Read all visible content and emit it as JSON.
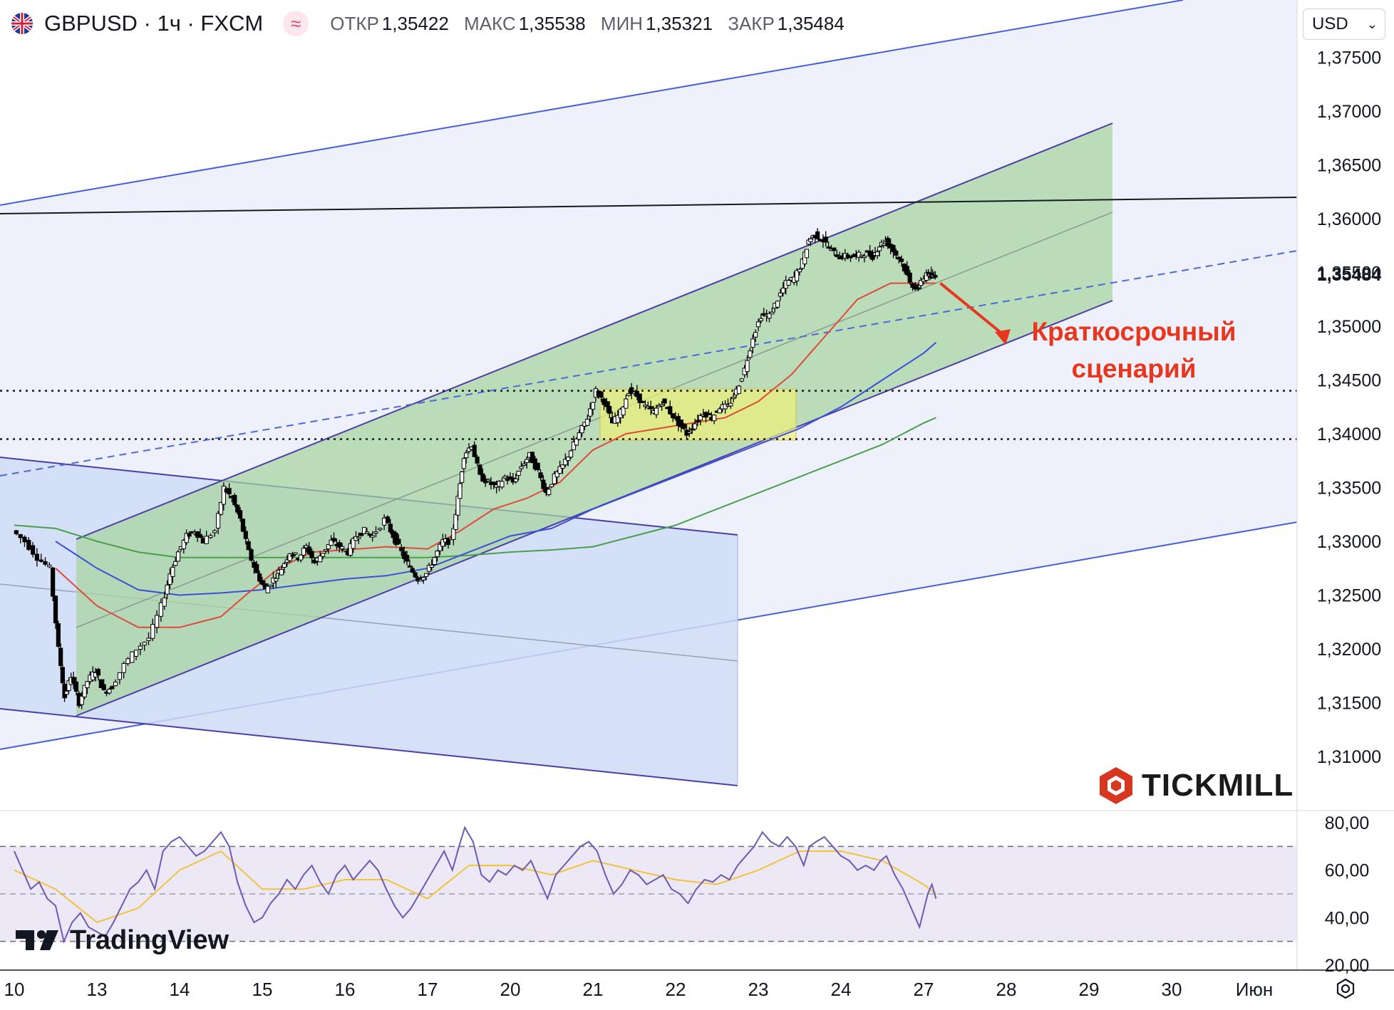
{
  "header": {
    "symbol": "GBPUSD · 1ч · FXCM",
    "ohlc": [
      {
        "key": "ОТКР",
        "value": "1,35422"
      },
      {
        "key": "МАКС",
        "value": "1,35538"
      },
      {
        "key": "МИН",
        "value": "1,35321"
      },
      {
        "key": "ЗАКР",
        "value": "1,35484"
      }
    ],
    "currency": "USD"
  },
  "annotation": {
    "line1": "Краткосрочный",
    "line2": "сценарий"
  },
  "branding": {
    "tickmill": "TICKMILL",
    "tradingview": "TradingView"
  },
  "colors": {
    "candle": "#000000",
    "ema_red": "#e04a3a",
    "ma_blue": "#3b4fd8",
    "ma_green": "#4aa04a",
    "channel_fill": "#a8d4a0",
    "zone_fill": "#eef07a",
    "rsi_line": "#6e59b5",
    "rsi_signal": "#f0c43a",
    "annotation": "#e8371f",
    "last_price": "#131722"
  },
  "chart_data": [
    {
      "type": "candlestick",
      "title": "GBPUSD · 1ч · FXCM",
      "ylim": [
        1.307,
        1.38
      ],
      "y_ticks": [
        "1,37500",
        "1,37000",
        "1,36500",
        "1,36000",
        "1,35500",
        "1,35000",
        "1,34500",
        "1,34000",
        "1,33500",
        "1,33000",
        "1,32500",
        "1,32000",
        "1,31500",
        "1,31000"
      ],
      "y_tick_values": [
        1.375,
        1.37,
        1.365,
        1.36,
        1.355,
        1.35,
        1.345,
        1.34,
        1.335,
        1.33,
        1.325,
        1.32,
        1.315,
        1.31
      ],
      "last_price": 1.35484,
      "last_price_label": "1,35484",
      "x_labels": [
        "10",
        "13",
        "14",
        "15",
        "16",
        "17",
        "20",
        "21",
        "22",
        "23",
        "24",
        "27",
        "28",
        "29",
        "30",
        "Июн"
      ],
      "x_label_slots": [
        0,
        1,
        2,
        3,
        4,
        5,
        6,
        7,
        8,
        9,
        10,
        11,
        12,
        13,
        14,
        15
      ],
      "price_path": [
        [
          0.0,
          1.331
        ],
        [
          0.15,
          1.33
        ],
        [
          0.3,
          1.3285
        ],
        [
          0.45,
          1.3275
        ],
        [
          0.55,
          1.32
        ],
        [
          0.62,
          1.3155
        ],
        [
          0.7,
          1.3175
        ],
        [
          0.8,
          1.315
        ],
        [
          0.9,
          1.317
        ],
        [
          1.0,
          1.318
        ],
        [
          1.1,
          1.316
        ],
        [
          1.2,
          1.3165
        ],
        [
          1.35,
          1.3185
        ],
        [
          1.5,
          1.32
        ],
        [
          1.65,
          1.321
        ],
        [
          1.8,
          1.324
        ],
        [
          1.9,
          1.327
        ],
        [
          2.0,
          1.329
        ],
        [
          2.1,
          1.3305
        ],
        [
          2.2,
          1.331
        ],
        [
          2.3,
          1.33
        ],
        [
          2.45,
          1.331
        ],
        [
          2.55,
          1.335
        ],
        [
          2.65,
          1.334
        ],
        [
          2.75,
          1.332
        ],
        [
          2.85,
          1.329
        ],
        [
          2.95,
          1.327
        ],
        [
          3.05,
          1.3255
        ],
        [
          3.15,
          1.3265
        ],
        [
          3.25,
          1.3275
        ],
        [
          3.35,
          1.329
        ],
        [
          3.45,
          1.3285
        ],
        [
          3.55,
          1.3295
        ],
        [
          3.65,
          1.328
        ],
        [
          3.75,
          1.329
        ],
        [
          3.85,
          1.33
        ],
        [
          3.95,
          1.3295
        ],
        [
          4.05,
          1.329
        ],
        [
          4.15,
          1.3305
        ],
        [
          4.25,
          1.331
        ],
        [
          4.35,
          1.3305
        ],
        [
          4.5,
          1.332
        ],
        [
          4.6,
          1.3305
        ],
        [
          4.7,
          1.329
        ],
        [
          4.8,
          1.3275
        ],
        [
          4.9,
          1.3265
        ],
        [
          5.0,
          1.327
        ],
        [
          5.1,
          1.3285
        ],
        [
          5.2,
          1.33
        ],
        [
          5.3,
          1.33
        ],
        [
          5.38,
          1.334
        ],
        [
          5.45,
          1.338
        ],
        [
          5.55,
          1.339
        ],
        [
          5.65,
          1.336
        ],
        [
          5.75,
          1.3355
        ],
        [
          5.85,
          1.335
        ],
        [
          5.95,
          1.336
        ],
        [
          6.05,
          1.3355
        ],
        [
          6.15,
          1.337
        ],
        [
          6.25,
          1.338
        ],
        [
          6.35,
          1.3365
        ],
        [
          6.45,
          1.3345
        ],
        [
          6.55,
          1.336
        ],
        [
          6.65,
          1.337
        ],
        [
          6.75,
          1.3385
        ],
        [
          6.85,
          1.34
        ],
        [
          6.95,
          1.3415
        ],
        [
          7.05,
          1.344
        ],
        [
          7.15,
          1.343
        ],
        [
          7.25,
          1.341
        ],
        [
          7.35,
          1.342
        ],
        [
          7.45,
          1.344
        ],
        [
          7.55,
          1.3435
        ],
        [
          7.65,
          1.3425
        ],
        [
          7.75,
          1.342
        ],
        [
          7.85,
          1.343
        ],
        [
          7.95,
          1.342
        ],
        [
          8.05,
          1.341
        ],
        [
          8.15,
          1.34
        ],
        [
          8.25,
          1.341
        ],
        [
          8.35,
          1.342
        ],
        [
          8.45,
          1.3415
        ],
        [
          8.55,
          1.3425
        ],
        [
          8.65,
          1.3425
        ],
        [
          8.75,
          1.344
        ],
        [
          8.85,
          1.346
        ],
        [
          8.95,
          1.349
        ],
        [
          9.05,
          1.351
        ],
        [
          9.15,
          1.351
        ],
        [
          9.25,
          1.3525
        ],
        [
          9.35,
          1.354
        ],
        [
          9.45,
          1.3545
        ],
        [
          9.55,
          1.356
        ],
        [
          9.62,
          1.358
        ],
        [
          9.7,
          1.3585
        ],
        [
          9.8,
          1.358
        ],
        [
          9.9,
          1.357
        ],
        [
          10.0,
          1.3565
        ],
        [
          10.1,
          1.3565
        ],
        [
          10.2,
          1.3565
        ],
        [
          10.3,
          1.3568
        ],
        [
          10.4,
          1.3565
        ],
        [
          10.48,
          1.3575
        ],
        [
          10.55,
          1.358
        ],
        [
          10.65,
          1.357
        ],
        [
          10.75,
          1.356
        ],
        [
          10.85,
          1.354
        ],
        [
          10.95,
          1.3535
        ],
        [
          11.05,
          1.355
        ],
        [
          11.1,
          1.3545
        ],
        [
          11.15,
          1.3548
        ]
      ],
      "ema_red": [
        [
          0.5,
          1.3275
        ],
        [
          1.0,
          1.324
        ],
        [
          1.5,
          1.322
        ],
        [
          2.0,
          1.322
        ],
        [
          2.5,
          1.323
        ],
        [
          2.8,
          1.325
        ],
        [
          3.2,
          1.3275
        ],
        [
          3.6,
          1.329
        ],
        [
          4.0,
          1.3292
        ],
        [
          4.5,
          1.3295
        ],
        [
          5.0,
          1.3293
        ],
        [
          5.4,
          1.331
        ],
        [
          5.8,
          1.333
        ],
        [
          6.2,
          1.334
        ],
        [
          6.6,
          1.3355
        ],
        [
          7.0,
          1.3385
        ],
        [
          7.4,
          1.34
        ],
        [
          7.8,
          1.3405
        ],
        [
          8.2,
          1.341
        ],
        [
          8.6,
          1.3415
        ],
        [
          9.0,
          1.343
        ],
        [
          9.4,
          1.3455
        ],
        [
          9.8,
          1.349
        ],
        [
          10.2,
          1.3525
        ],
        [
          10.6,
          1.354
        ],
        [
          11.15,
          1.354
        ]
      ],
      "ma_blue": [
        [
          0.5,
          1.33
        ],
        [
          1.0,
          1.3275
        ],
        [
          1.5,
          1.3255
        ],
        [
          2.0,
          1.325
        ],
        [
          2.5,
          1.3252
        ],
        [
          3.0,
          1.3255
        ],
        [
          3.5,
          1.326
        ],
        [
          4.0,
          1.3265
        ],
        [
          4.5,
          1.3268
        ],
        [
          5.0,
          1.3275
        ],
        [
          5.5,
          1.329
        ],
        [
          6.0,
          1.3305
        ],
        [
          6.5,
          1.3312
        ],
        [
          7.0,
          1.333
        ],
        [
          7.5,
          1.3345
        ],
        [
          8.0,
          1.336
        ],
        [
          8.5,
          1.3375
        ],
        [
          9.0,
          1.339
        ],
        [
          9.5,
          1.3405
        ],
        [
          10.0,
          1.3425
        ],
        [
          10.5,
          1.345
        ],
        [
          11.0,
          1.3475
        ],
        [
          11.15,
          1.3485
        ]
      ],
      "ma_green": [
        [
          0.0,
          1.3315
        ],
        [
          0.5,
          1.3312
        ],
        [
          1.0,
          1.33
        ],
        [
          1.5,
          1.329
        ],
        [
          2.0,
          1.3285
        ],
        [
          2.5,
          1.3285
        ],
        [
          3.0,
          1.3285
        ],
        [
          3.5,
          1.3285
        ],
        [
          4.0,
          1.3285
        ],
        [
          4.5,
          1.3285
        ],
        [
          5.0,
          1.3285
        ],
        [
          5.5,
          1.3287
        ],
        [
          6.0,
          1.329
        ],
        [
          6.5,
          1.3292
        ],
        [
          7.0,
          1.3295
        ],
        [
          7.5,
          1.3305
        ],
        [
          8.0,
          1.3315
        ],
        [
          8.5,
          1.333
        ],
        [
          9.0,
          1.3345
        ],
        [
          9.5,
          1.336
        ],
        [
          10.0,
          1.3375
        ],
        [
          10.5,
          1.339
        ],
        [
          11.0,
          1.341
        ],
        [
          11.15,
          1.3415
        ]
      ],
      "levels_dotted": [
        1.344,
        1.3395
      ]
    },
    {
      "type": "line",
      "title": "",
      "ylim": [
        20,
        85
      ],
      "y_ticks": [
        "80,00",
        "60,00",
        "40,00",
        "20,00"
      ],
      "y_tick_values": [
        80,
        60,
        40,
        20
      ],
      "bands": [
        70,
        50,
        30
      ],
      "rsi": [
        [
          0.0,
          68
        ],
        [
          0.1,
          60
        ],
        [
          0.2,
          52
        ],
        [
          0.3,
          55
        ],
        [
          0.4,
          48
        ],
        [
          0.5,
          45
        ],
        [
          0.6,
          30
        ],
        [
          0.7,
          38
        ],
        [
          0.8,
          42
        ],
        [
          0.9,
          36
        ],
        [
          1.0,
          34
        ],
        [
          1.1,
          32
        ],
        [
          1.2,
          38
        ],
        [
          1.3,
          45
        ],
        [
          1.4,
          52
        ],
        [
          1.5,
          55
        ],
        [
          1.6,
          60
        ],
        [
          1.7,
          52
        ],
        [
          1.8,
          68
        ],
        [
          1.9,
          72
        ],
        [
          2.0,
          74
        ],
        [
          2.1,
          70
        ],
        [
          2.2,
          66
        ],
        [
          2.3,
          68
        ],
        [
          2.4,
          72
        ],
        [
          2.5,
          76
        ],
        [
          2.6,
          70
        ],
        [
          2.7,
          55
        ],
        [
          2.8,
          45
        ],
        [
          2.9,
          38
        ],
        [
          3.0,
          40
        ],
        [
          3.1,
          46
        ],
        [
          3.2,
          50
        ],
        [
          3.3,
          56
        ],
        [
          3.4,
          52
        ],
        [
          3.5,
          58
        ],
        [
          3.6,
          62
        ],
        [
          3.7,
          55
        ],
        [
          3.8,
          50
        ],
        [
          3.9,
          58
        ],
        [
          4.0,
          62
        ],
        [
          4.1,
          56
        ],
        [
          4.2,
          60
        ],
        [
          4.3,
          64
        ],
        [
          4.4,
          60
        ],
        [
          4.5,
          52
        ],
        [
          4.6,
          45
        ],
        [
          4.7,
          40
        ],
        [
          4.8,
          44
        ],
        [
          4.9,
          50
        ],
        [
          5.0,
          56
        ],
        [
          5.1,
          62
        ],
        [
          5.2,
          68
        ],
        [
          5.3,
          60
        ],
        [
          5.38,
          70
        ],
        [
          5.45,
          78
        ],
        [
          5.55,
          72
        ],
        [
          5.65,
          58
        ],
        [
          5.75,
          55
        ],
        [
          5.85,
          60
        ],
        [
          5.95,
          58
        ],
        [
          6.05,
          62
        ],
        [
          6.15,
          60
        ],
        [
          6.25,
          64
        ],
        [
          6.35,
          56
        ],
        [
          6.45,
          48
        ],
        [
          6.55,
          58
        ],
        [
          6.65,
          62
        ],
        [
          6.75,
          66
        ],
        [
          6.85,
          70
        ],
        [
          6.95,
          72
        ],
        [
          7.05,
          68
        ],
        [
          7.15,
          58
        ],
        [
          7.25,
          50
        ],
        [
          7.35,
          54
        ],
        [
          7.45,
          60
        ],
        [
          7.55,
          58
        ],
        [
          7.65,
          54
        ],
        [
          7.75,
          56
        ],
        [
          7.85,
          58
        ],
        [
          7.95,
          52
        ],
        [
          8.05,
          50
        ],
        [
          8.15,
          46
        ],
        [
          8.25,
          52
        ],
        [
          8.35,
          56
        ],
        [
          8.45,
          55
        ],
        [
          8.55,
          58
        ],
        [
          8.65,
          56
        ],
        [
          8.75,
          62
        ],
        [
          8.85,
          66
        ],
        [
          8.95,
          70
        ],
        [
          9.05,
          76
        ],
        [
          9.15,
          72
        ],
        [
          9.25,
          70
        ],
        [
          9.35,
          74
        ],
        [
          9.45,
          70
        ],
        [
          9.55,
          62
        ],
        [
          9.62,
          70
        ],
        [
          9.7,
          72
        ],
        [
          9.8,
          74
        ],
        [
          9.9,
          70
        ],
        [
          10.0,
          66
        ],
        [
          10.1,
          64
        ],
        [
          10.2,
          60
        ],
        [
          10.3,
          62
        ],
        [
          10.4,
          60
        ],
        [
          10.48,
          64
        ],
        [
          10.55,
          66
        ],
        [
          10.65,
          58
        ],
        [
          10.75,
          52
        ],
        [
          10.85,
          44
        ],
        [
          10.95,
          36
        ],
        [
          11.05,
          50
        ],
        [
          11.1,
          54
        ],
        [
          11.15,
          48
        ]
      ],
      "signal": [
        [
          0.0,
          60
        ],
        [
          0.5,
          52
        ],
        [
          1.0,
          38
        ],
        [
          1.5,
          44
        ],
        [
          2.0,
          60
        ],
        [
          2.5,
          68
        ],
        [
          3.0,
          52
        ],
        [
          3.5,
          52
        ],
        [
          4.0,
          56
        ],
        [
          4.5,
          56
        ],
        [
          5.0,
          48
        ],
        [
          5.5,
          62
        ],
        [
          6.0,
          62
        ],
        [
          6.5,
          58
        ],
        [
          7.0,
          64
        ],
        [
          7.5,
          60
        ],
        [
          8.0,
          56
        ],
        [
          8.5,
          54
        ],
        [
          9.0,
          60
        ],
        [
          9.5,
          68
        ],
        [
          10.0,
          68
        ],
        [
          10.5,
          64
        ],
        [
          11.0,
          54
        ],
        [
          11.15,
          50
        ]
      ]
    }
  ]
}
